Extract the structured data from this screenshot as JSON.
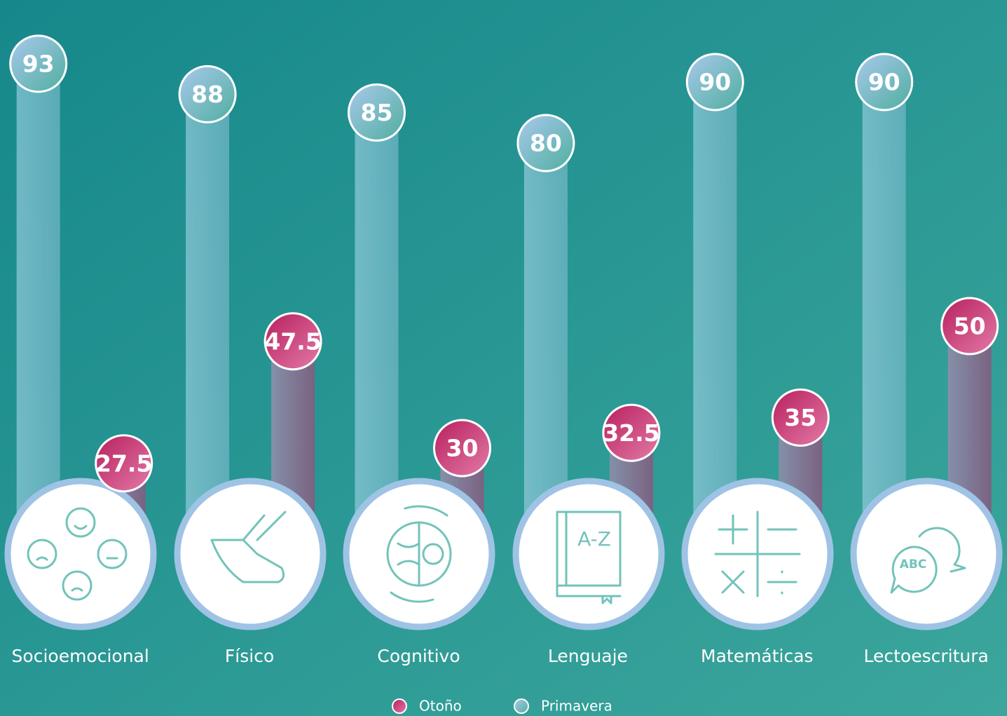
{
  "chart_data": {
    "type": "bar",
    "categories": [
      "Socioemocional",
      "Físico",
      "Cognitivo",
      "Lenguaje",
      "Matemáticas",
      "Lectoescritura"
    ],
    "series": [
      {
        "name": "Primavera",
        "color": "#7fc0cc",
        "values": [
          93,
          88,
          85,
          80,
          90,
          90
        ]
      },
      {
        "name": "Otoño",
        "color": "#c8336e",
        "values": [
          27.5,
          47.5,
          30,
          32.5,
          35,
          50
        ]
      }
    ],
    "ylim": [
      0,
      100
    ],
    "annotations": [
      "A-Z",
      "ABC"
    ]
  }
}
